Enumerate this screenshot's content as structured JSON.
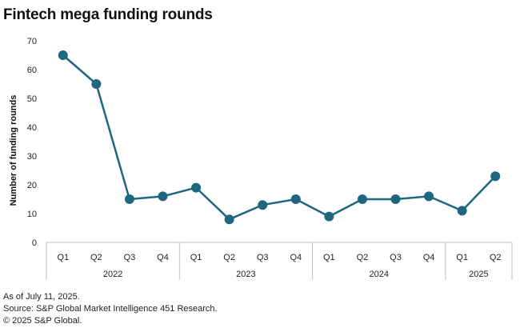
{
  "title": "Fintech mega funding rounds",
  "chart_data": {
    "type": "line",
    "title": "Fintech mega funding rounds",
    "ylabel": "Number of funding rounds",
    "xlabel": "",
    "ylim": [
      0,
      70
    ],
    "yticks": [
      0,
      10,
      20,
      30,
      40,
      50,
      60,
      70
    ],
    "categories": [
      "Q1",
      "Q2",
      "Q3",
      "Q4",
      "Q1",
      "Q2",
      "Q3",
      "Q4",
      "Q1",
      "Q2",
      "Q3",
      "Q4",
      "Q1",
      "Q2"
    ],
    "groups": [
      {
        "label": "2022",
        "count": 4
      },
      {
        "label": "2023",
        "count": 4
      },
      {
        "label": "2024",
        "count": 4
      },
      {
        "label": "2025",
        "count": 2
      }
    ],
    "series": [
      {
        "name": "Mega funding rounds",
        "values": [
          65,
          55,
          15,
          16,
          19,
          8,
          13,
          15,
          9,
          15,
          15,
          16,
          11,
          23
        ]
      }
    ],
    "grid": false,
    "colors": {
      "line": "#1f6680",
      "axis": "#bfbfbf",
      "text": "#222222"
    }
  },
  "footnotes": [
    "As of July 11, 2025.",
    "Source: S&P Global Market Intelligence 451 Research.",
    "© 2025 S&P Global."
  ]
}
